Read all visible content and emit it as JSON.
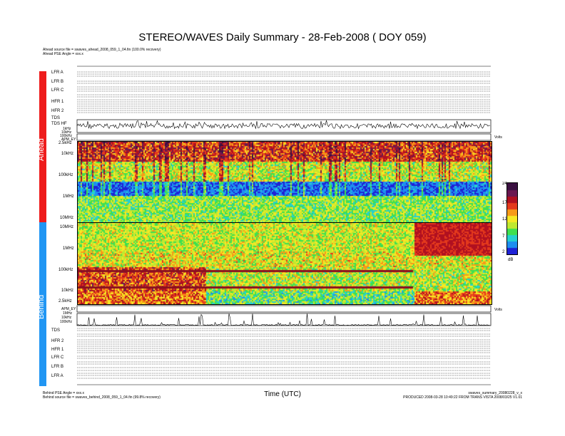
{
  "title": "STEREO/WAVES Daily Summary - 28-Feb-2008 ( DOY 059)",
  "ahead_info": {
    "source_file": "Ahead source file = swaves_ahead_2008_059_1_04.fin (100.0% recovery)",
    "pse_angle": "Ahead PSE Angle = xxx.x"
  },
  "behind_info": {
    "pse_angle": "Behind PSE Angle = xxx.x",
    "source_file": "Behind source file = swaves_behind_2008_059_1_04.fin (99.8% recovery)"
  },
  "footer_right": {
    "filename": "swaves_summary_20080228_v_x",
    "produced": "PRODUCED 2008-03-28 10:49:22 FROM TRANS VISTA 2008/03/25 V1.01"
  },
  "x_axis_label": "Time (UTC)",
  "side_labels": {
    "ahead": "Ahead",
    "behind": "Behind"
  },
  "ahead_rows": [
    "LFR A",
    "LFR B",
    "LFR C",
    "HFR 1",
    "HFR 2",
    "TDS",
    "TDS HF"
  ],
  "behind_rows": [
    "TDS",
    "HFR 2",
    "HFR 1",
    "LFR C",
    "LFR B",
    "LFR A"
  ],
  "ahead_axis": {
    "ticks": [
      "1kHz",
      "10kHz",
      "100kHz"
    ],
    "apm_label": "APM_EY",
    "spec_ticks": [
      "2.5kHz",
      "10kHz",
      "100kHz",
      "1MHz",
      "10MHz"
    ],
    "volts": "Volts"
  },
  "behind_axis": {
    "spec_ticks": [
      "10MHz",
      "1MHz",
      "100kHz",
      "10kHz",
      "2.5kHz"
    ],
    "apm_label": "APM_EY",
    "ticks": [
      "1MHz",
      "10kHz",
      "100kHz"
    ],
    "volts": "Volts"
  },
  "colorbar": {
    "ticks": [
      "24",
      "17",
      "12",
      "7",
      "2"
    ],
    "unit": "dB"
  },
  "colors": {
    "ahead_bar": "#ee1c1c",
    "behind_bar": "#2196f3",
    "palette": [
      "#1f22d6",
      "#1e8ef0",
      "#25d0d0",
      "#3fe04f",
      "#bfe830",
      "#f6e824",
      "#f79a18",
      "#e4391c",
      "#b01020",
      "#6a1850",
      "#3a1040"
    ]
  },
  "chart_data": {
    "type": "heatmap",
    "title": "STEREO/WAVES Daily Summary - 28-Feb-2008 ( DOY 059)",
    "xlabel": "Time (UTC)",
    "colorbar_range": [
      2,
      24
    ],
    "colorbar_unit": "dB",
    "panels": [
      {
        "name": "Ahead",
        "freq_range": [
          "2.5kHz",
          "10MHz"
        ]
      },
      {
        "name": "Behind",
        "freq_range": [
          "10MHz",
          "2.5kHz"
        ]
      }
    ]
  }
}
